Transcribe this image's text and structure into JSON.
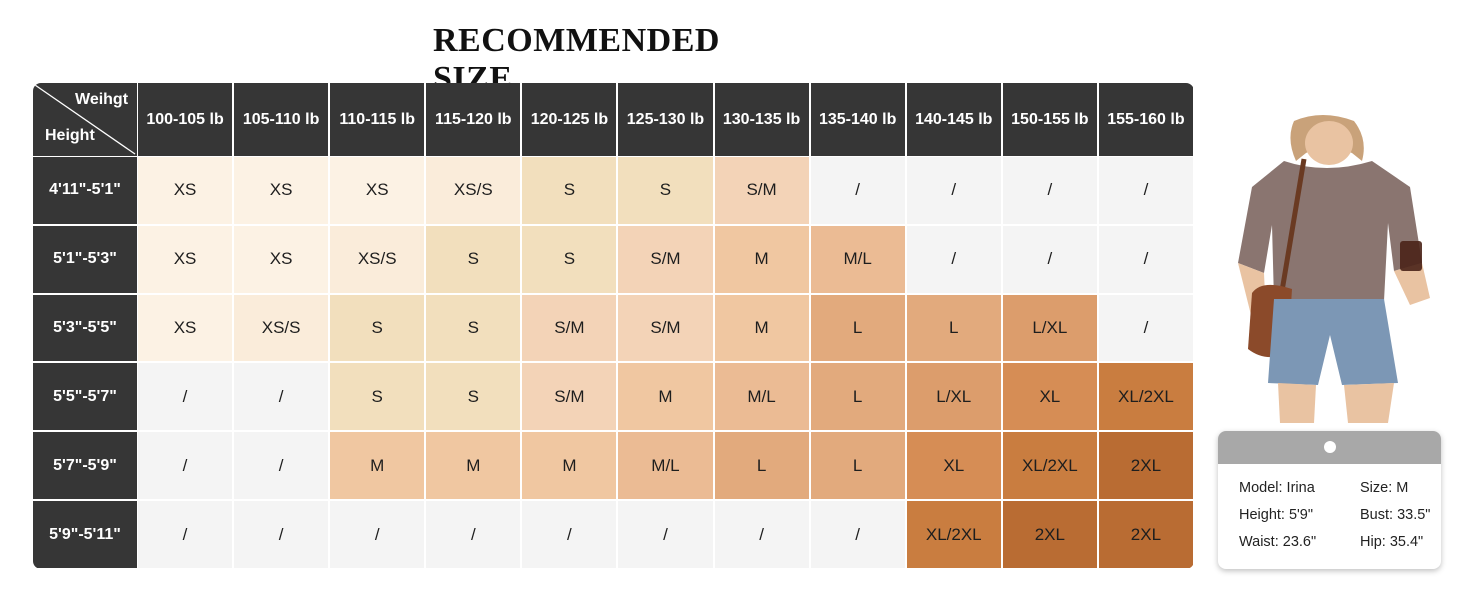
{
  "title": "RECOMMENDED SIZE",
  "corner": {
    "weight_label": "Weihgt",
    "height_label": "Height"
  },
  "weights": [
    "100-105 lb",
    "105-110 lb",
    "110-115 lb",
    "115-120 lb",
    "120-125 lb",
    "125-130 lb",
    "130-135 lb",
    "135-140 lb",
    "140-145 lb",
    "150-155 lb",
    "155-160 lb"
  ],
  "rows": [
    {
      "height": "4'11\"-5'1\"",
      "sizes": [
        "XS",
        "XS",
        "XS",
        "XS/S",
        "S",
        "S",
        "S/M",
        "/",
        "/",
        "/",
        "/"
      ]
    },
    {
      "height": "5'1\"-5'3\"",
      "sizes": [
        "XS",
        "XS",
        "XS/S",
        "S",
        "S",
        "S/M",
        "M",
        "M/L",
        "/",
        "/",
        "/"
      ]
    },
    {
      "height": "5'3\"-5'5\"",
      "sizes": [
        "XS",
        "XS/S",
        "S",
        "S",
        "S/M",
        "S/M",
        "M",
        "L",
        "L",
        "L/XL",
        "/"
      ]
    },
    {
      "height": "5'5\"-5'7\"",
      "sizes": [
        "/",
        "/",
        "S",
        "S",
        "S/M",
        "M",
        "M/L",
        "L",
        "L/XL",
        "XL",
        "XL/2XL"
      ]
    },
    {
      "height": "5'7\"-5'9\"",
      "sizes": [
        "/",
        "/",
        "M",
        "M",
        "M",
        "M/L",
        "L",
        "L",
        "XL",
        "XL/2XL",
        "2XL"
      ]
    },
    {
      "height": "5'9\"-5'11\"",
      "sizes": [
        "/",
        "/",
        "/",
        "/",
        "/",
        "/",
        "/",
        "/",
        "XL/2XL",
        "2XL",
        "2XL"
      ]
    }
  ],
  "size_colors": {
    "XS": "#fcf2e4",
    "XS/S": "#faecda",
    "S": "#f2dfbd",
    "S/M": "#f3d3b7",
    "M": "#f0c7a1",
    "M/L": "#ebbb94",
    "L": "#e2aa7d",
    "L/XL": "#dc9d6c",
    "XL": "#d68d55",
    "XL/2XL": "#c97d40",
    "2XL": "#b96c33",
    "/": "#f4f4f4"
  },
  "model": {
    "name": "Model: Irina",
    "size": "Size: M",
    "height": "Height: 5'9\"",
    "bust": "Bust: 33.5\"",
    "waist": "Waist: 23.6\"",
    "hip": "Hip: 35.4\""
  }
}
